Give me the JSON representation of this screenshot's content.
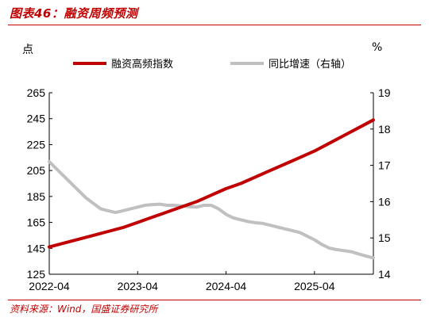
{
  "header": {
    "title": "图表46：融资周频预测"
  },
  "footer": {
    "source": "资料来源：Wind，国盛证券研究所"
  },
  "colors": {
    "accent": "#c00000",
    "series_primary": "#c00000",
    "series_secondary": "#c0c0c0"
  },
  "chart_data": {
    "type": "line",
    "left_unit": "点",
    "right_unit": "%",
    "x_ticks": [
      "2022-04",
      "2023-04",
      "2024-04",
      "2025-04"
    ],
    "x_range": [
      "2022-04",
      "2025-12"
    ],
    "y_left": {
      "range": [
        125,
        265
      ],
      "ticks": [
        125,
        145,
        165,
        185,
        205,
        225,
        245,
        265
      ]
    },
    "y_right": {
      "range": [
        14,
        19
      ],
      "ticks": [
        14,
        15,
        16,
        17,
        18,
        19
      ]
    },
    "legend_position": "top",
    "grid": false,
    "series": [
      {
        "name": "融资高频指数",
        "axis": "left",
        "color": "#c00000",
        "x": [
          "2022-04",
          "2022-06",
          "2022-08",
          "2022-10",
          "2022-12",
          "2023-02",
          "2023-04",
          "2023-06",
          "2023-08",
          "2023-10",
          "2023-12",
          "2024-02",
          "2024-04",
          "2024-06",
          "2024-08",
          "2024-10",
          "2024-12",
          "2025-02",
          "2025-04",
          "2025-06",
          "2025-08",
          "2025-10",
          "2025-12"
        ],
        "values": [
          146,
          149,
          152,
          155,
          158,
          161,
          165,
          169,
          173,
          177,
          181,
          186,
          191,
          195,
          200,
          205,
          210,
          215,
          220,
          226,
          232,
          238,
          244
        ]
      },
      {
        "name": "同比增速（右轴）",
        "axis": "right",
        "color": "#c0c0c0",
        "x": [
          "2022-04",
          "2022-05",
          "2022-06",
          "2022-07",
          "2022-08",
          "2022-09",
          "2022-10",
          "2022-11",
          "2022-12",
          "2023-01",
          "2023-02",
          "2023-03",
          "2023-04",
          "2023-05",
          "2023-06",
          "2023-07",
          "2023-08",
          "2023-09",
          "2023-10",
          "2023-11",
          "2023-12",
          "2024-01",
          "2024-02",
          "2024-03",
          "2024-04",
          "2024-05",
          "2024-06",
          "2024-07",
          "2024-08",
          "2024-09",
          "2024-10",
          "2024-11",
          "2024-12",
          "2025-01",
          "2025-02",
          "2025-03",
          "2025-04",
          "2025-05",
          "2025-06",
          "2025-07",
          "2025-08",
          "2025-09",
          "2025-10",
          "2025-11",
          "2025-12"
        ],
        "values": [
          17.1,
          16.9,
          16.7,
          16.5,
          16.3,
          16.1,
          15.95,
          15.8,
          15.75,
          15.7,
          15.75,
          15.8,
          15.85,
          15.9,
          15.92,
          15.93,
          15.9,
          15.9,
          15.88,
          15.86,
          15.85,
          15.9,
          15.9,
          15.8,
          15.65,
          15.55,
          15.5,
          15.45,
          15.42,
          15.4,
          15.35,
          15.3,
          15.25,
          15.2,
          15.15,
          15.05,
          14.95,
          14.82,
          14.72,
          14.68,
          14.65,
          14.62,
          14.56,
          14.5,
          14.45
        ]
      }
    ]
  }
}
